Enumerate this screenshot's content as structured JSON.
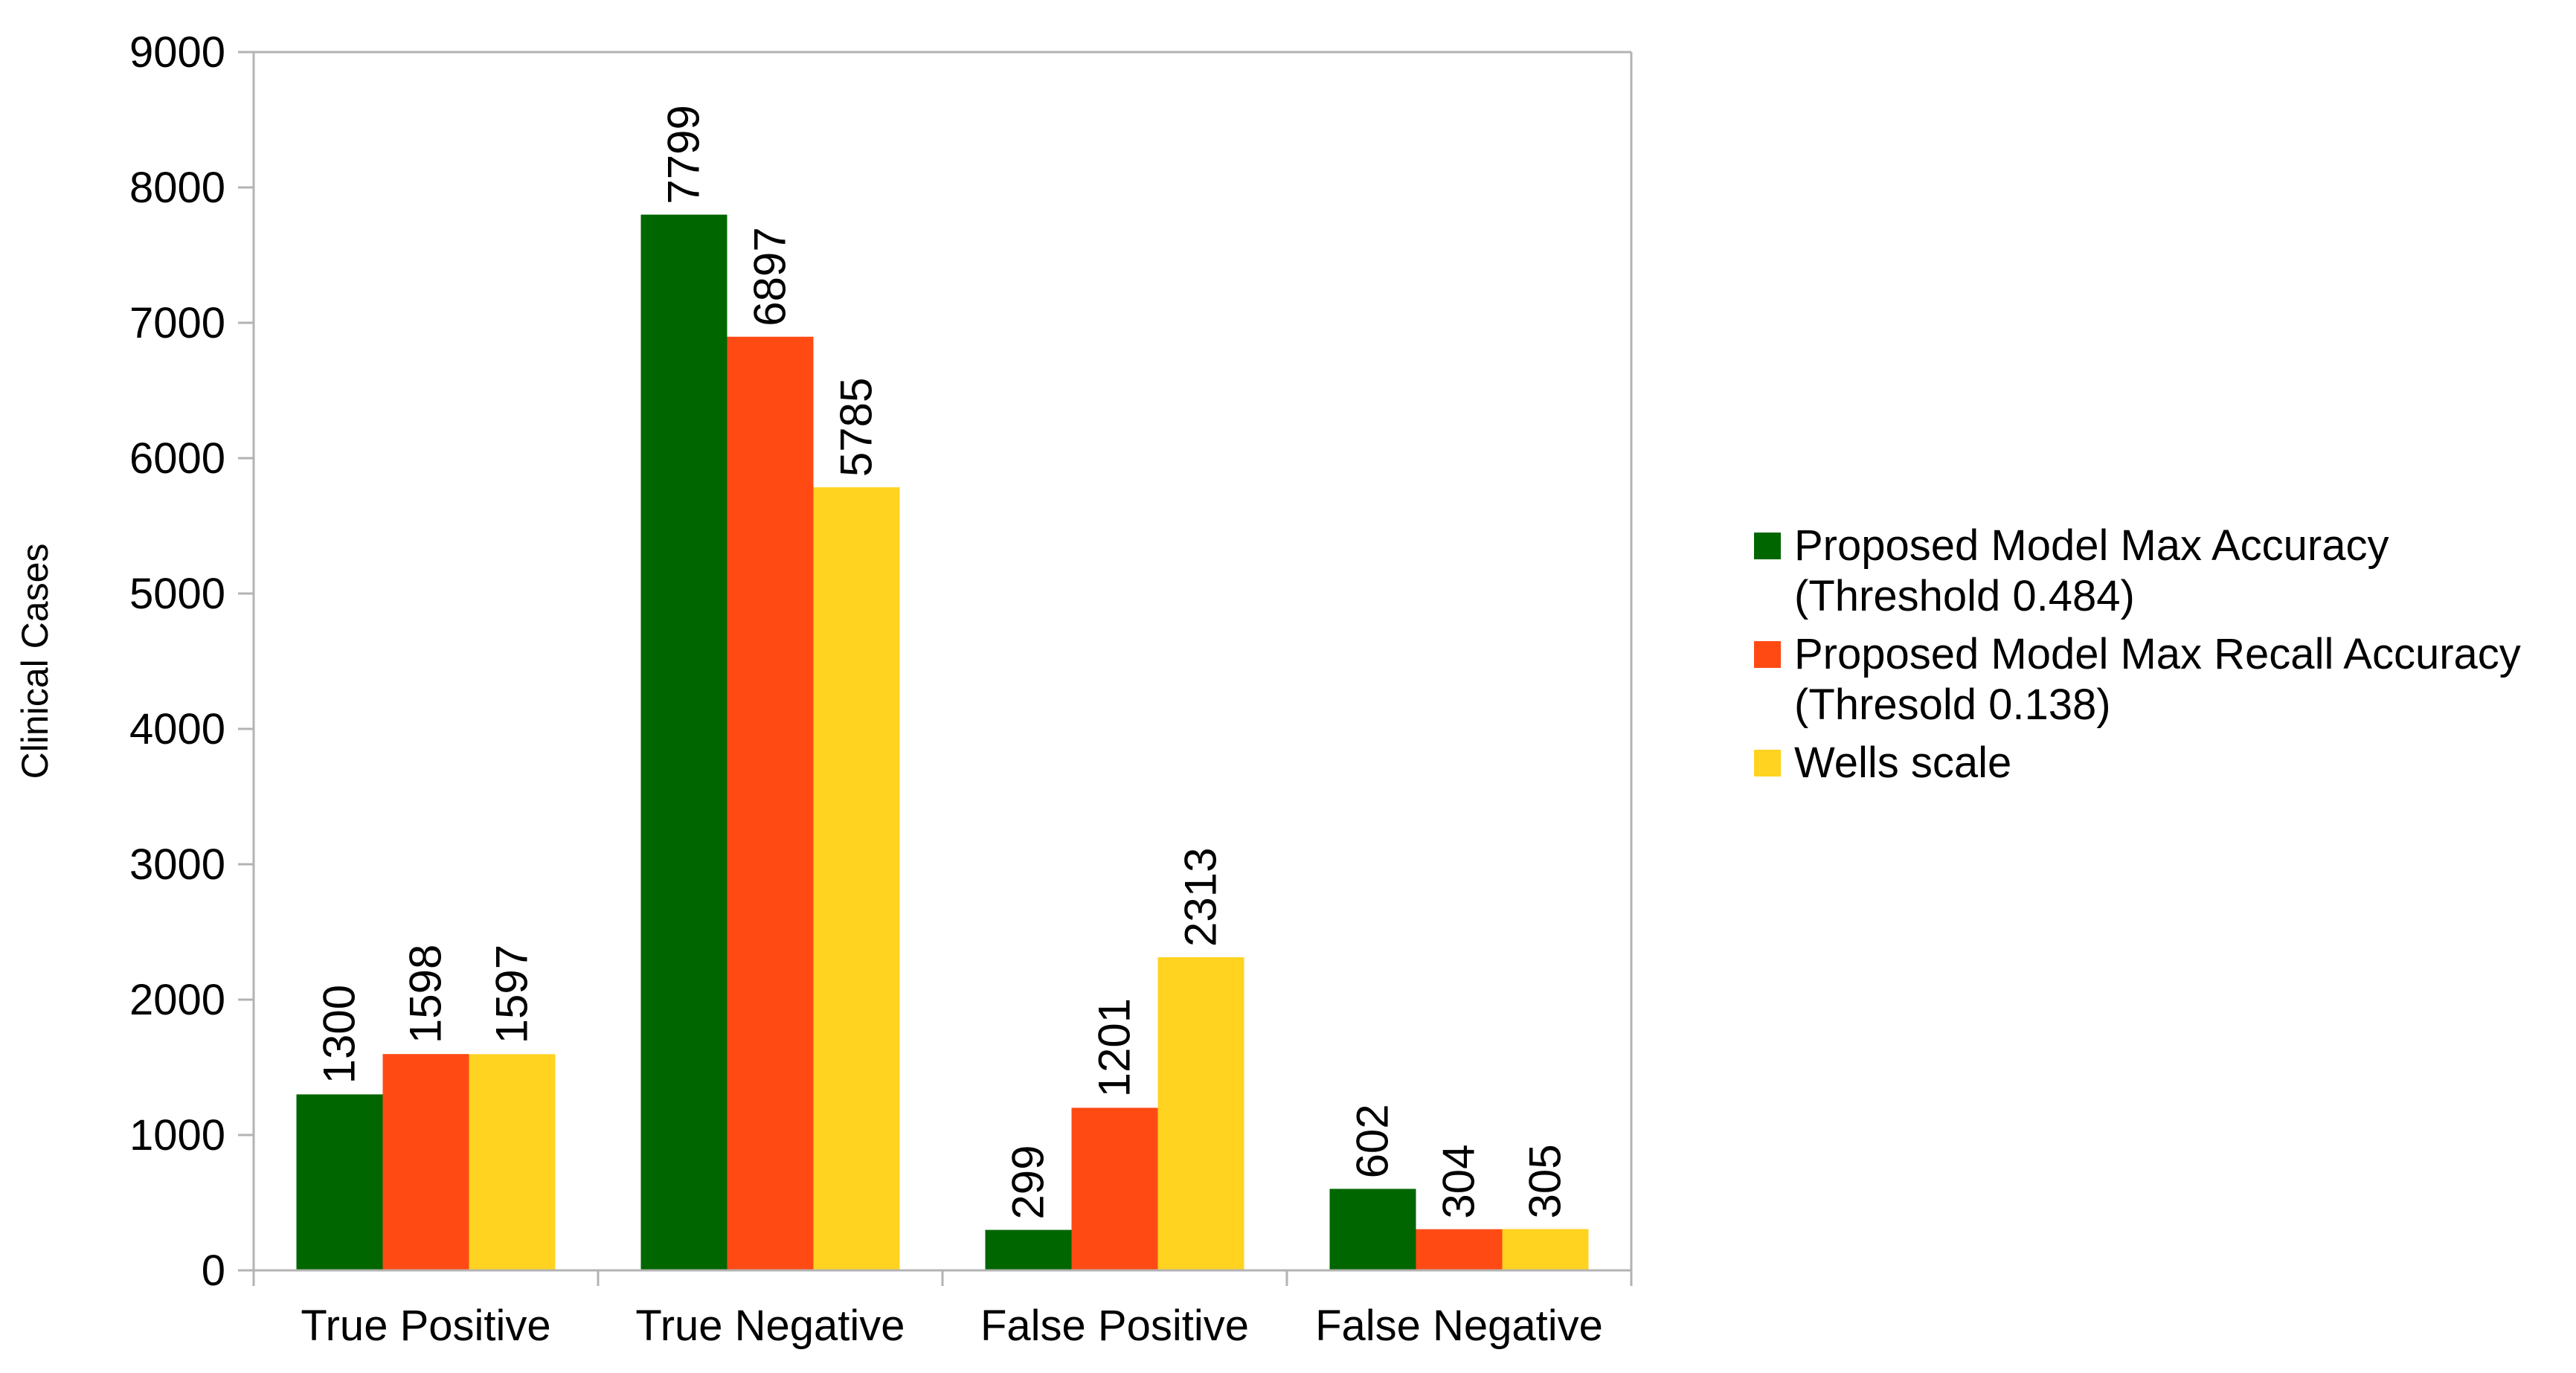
{
  "chart_data": {
    "type": "bar",
    "title": "",
    "xlabel": "",
    "ylabel": "Clinical Cases",
    "ylim": [
      0,
      9000
    ],
    "yticks": [
      0,
      1000,
      2000,
      3000,
      4000,
      5000,
      6000,
      7000,
      8000,
      9000
    ],
    "grid": false,
    "legend_position": "right",
    "categories": [
      "True Positive",
      "True Negative",
      "False Positive",
      "False Negative"
    ],
    "series": [
      {
        "name": "Proposed Model Max Accuracy\n(Threshold 0.484)",
        "color": "#006600",
        "values": [
          1300,
          7799,
          299,
          602
        ]
      },
      {
        "name": "Proposed Model Max Recall Accuracy\n(Thresold 0.138)",
        "color": "#ff4a14",
        "values": [
          1598,
          6897,
          1201,
          304
        ]
      },
      {
        "name": "Wells scale",
        "color": "#ffd320",
        "values": [
          1597,
          5785,
          2313,
          305
        ]
      }
    ],
    "data_labels": true
  }
}
